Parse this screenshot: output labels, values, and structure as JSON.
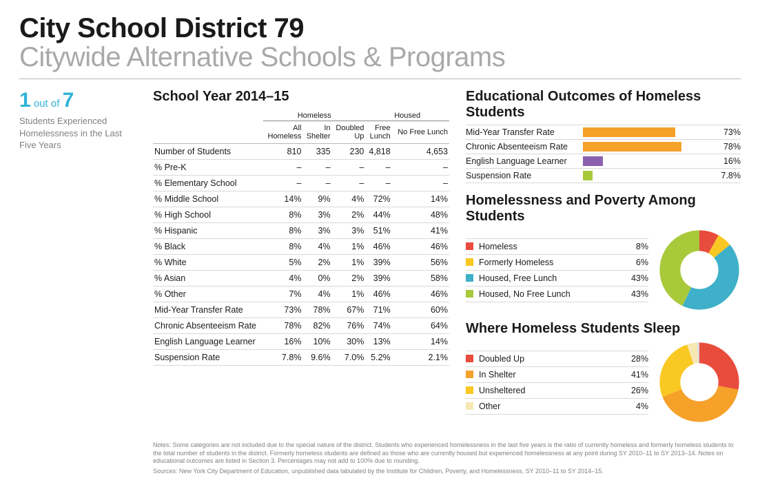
{
  "header": {
    "title": "City School District 79",
    "subtitle": "Citywide Alternative Schools & Programs"
  },
  "sidebar": {
    "ratio_num": "1",
    "ratio_mid": "out of",
    "ratio_den": "7",
    "caption": "Students Experienced Homelessness in the Last Five Years",
    "accent_color": "#2fb4d6"
  },
  "table": {
    "heading": "School Year 2014–15",
    "group_headers": [
      "Homeless",
      "Housed"
    ],
    "columns": [
      "All Homeless",
      "In Shelter",
      "Doubled Up",
      "Free Lunch",
      "No Free Lunch"
    ],
    "rows": [
      {
        "label": "Number of Students",
        "cells": [
          "810",
          "335",
          "230",
          "4,818",
          "4,653"
        ]
      },
      {
        "label": "% Pre-K",
        "cells": [
          "–",
          "–",
          "–",
          "–",
          "–"
        ]
      },
      {
        "label": "% Elementary School",
        "cells": [
          "–",
          "–",
          "–",
          "–",
          "–"
        ]
      },
      {
        "label": "% Middle School",
        "cells": [
          "14%",
          "9%",
          "4%",
          "72%",
          "14%"
        ]
      },
      {
        "label": "% High School",
        "cells": [
          "8%",
          "3%",
          "2%",
          "44%",
          "48%"
        ]
      },
      {
        "label": "% Hispanic",
        "cells": [
          "8%",
          "3%",
          "3%",
          "51%",
          "41%"
        ]
      },
      {
        "label": "% Black",
        "cells": [
          "8%",
          "4%",
          "1%",
          "46%",
          "46%"
        ]
      },
      {
        "label": "% White",
        "cells": [
          "5%",
          "2%",
          "1%",
          "39%",
          "56%"
        ]
      },
      {
        "label": "% Asian",
        "cells": [
          "4%",
          "0%",
          "2%",
          "39%",
          "58%"
        ]
      },
      {
        "label": "% Other",
        "cells": [
          "7%",
          "4%",
          "1%",
          "46%",
          "46%"
        ]
      },
      {
        "label": "Mid-Year Transfer Rate",
        "cells": [
          "73%",
          "78%",
          "67%",
          "71%",
          "60%"
        ]
      },
      {
        "label": "Chronic Absenteeism Rate",
        "cells": [
          "78%",
          "82%",
          "76%",
          "74%",
          "64%"
        ]
      },
      {
        "label": "English Language Learner",
        "cells": [
          "16%",
          "10%",
          "30%",
          "13%",
          "14%"
        ]
      },
      {
        "label": "Suspension Rate",
        "cells": [
          "7.8%",
          "9.6%",
          "7.0%",
          "5.2%",
          "2.1%"
        ]
      }
    ]
  },
  "outcomes": {
    "heading": "Educational Outcomes of Homeless Students",
    "bar_max_pct": 100,
    "rows": [
      {
        "label": "Mid-Year Transfer Rate",
        "value": 73,
        "text": "73%",
        "color": "#f5a12a"
      },
      {
        "label": "Chronic Absenteeism Rate",
        "value": 78,
        "text": "78%",
        "color": "#f5a12a"
      },
      {
        "label": "English Language Learner",
        "value": 16,
        "text": "16%",
        "color": "#8a5fb0"
      },
      {
        "label": "Suspension Rate",
        "value": 7.8,
        "text": "7.8%",
        "color": "#a8c93a"
      }
    ]
  },
  "poverty": {
    "heading": "Homelessness and Poverty Among Students",
    "items": [
      {
        "label": "Homeless",
        "value": 8,
        "text": "8%",
        "color": "#e84c3d"
      },
      {
        "label": "Formerly Homeless",
        "value": 6,
        "text": "6%",
        "color": "#f9c822"
      },
      {
        "label": "Housed, Free Lunch",
        "value": 43,
        "text": "43%",
        "color": "#3eb0c9"
      },
      {
        "label": "Housed, No Free Lunch",
        "value": 43,
        "text": "43%",
        "color": "#a8c93a"
      }
    ],
    "donut_hole": "#ffffff",
    "donut_hole_ratio": 0.48
  },
  "sleep": {
    "heading": "Where Homeless Students Sleep",
    "items": [
      {
        "label": "Doubled Up",
        "value": 28,
        "text": "28%",
        "color": "#e84c3d"
      },
      {
        "label": "In Shelter",
        "value": 41,
        "text": "41%",
        "color": "#f5a12a"
      },
      {
        "label": "Unsheltered",
        "value": 26,
        "text": "26%",
        "color": "#f9c822"
      },
      {
        "label": "Other",
        "value": 4,
        "text": "4%",
        "color": "#f6e7b3"
      }
    ],
    "extra_gray_slice": {
      "value": 1,
      "color": "#dcdcdc"
    },
    "donut_hole": "#ffffff",
    "donut_hole_ratio": 0.48
  },
  "notes": {
    "p1": "Notes: Some categories are not included due to the special nature of the district. Students who experienced homelessness in the last five years is the ratio of currently homeless and formerly homeless students to the total number of students in the district. Formerly homeless students are defined as those who are currently housed but experienced homelessness at any point during SY 2010–11 to SY 2013–14. Notes on educational outcomes are listed in Section 3. Percentages may not add to 100% due to rounding.",
    "p2": "Sources: New York City Department of Education, unpublished data tabulated by the Institute for Children, Poverty, and Homelessness, SY 2010–11 to SY 2014–15."
  }
}
